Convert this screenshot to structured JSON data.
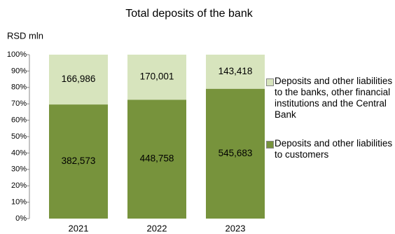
{
  "chart_data": {
    "type": "bar",
    "stacking": "percent",
    "title": "Total deposits of the bank",
    "y_label": "RSD mln",
    "categories": [
      "2021",
      "2022",
      "2023"
    ],
    "series": [
      {
        "name": "Deposits and other liabilities to customers",
        "color": "#77933c",
        "values": [
          382573,
          448758,
          545683
        ],
        "value_labels": [
          "382,573",
          "448,758",
          "545,683"
        ]
      },
      {
        "name": "Deposits and other liabilities to the banks, other financial institutions and the Central Bank",
        "color": "#d7e4bd",
        "values": [
          166986,
          170001,
          143418
        ],
        "value_labels": [
          "166,986",
          "170,001",
          "143,418"
        ]
      }
    ],
    "ylim": [
      0,
      100
    ],
    "yticks": [
      {
        "value": 0,
        "label": "0%"
      },
      {
        "value": 10,
        "label": "10%"
      },
      {
        "value": 20,
        "label": "20%"
      },
      {
        "value": 30,
        "label": "30%"
      },
      {
        "value": 40,
        "label": "40%"
      },
      {
        "value": 50,
        "label": "50%"
      },
      {
        "value": 60,
        "label": "60%"
      },
      {
        "value": 70,
        "label": "70%"
      },
      {
        "value": 80,
        "label": "80%"
      },
      {
        "value": 90,
        "label": "90%"
      },
      {
        "value": 100,
        "label": "100%"
      }
    ],
    "legend": "right"
  }
}
